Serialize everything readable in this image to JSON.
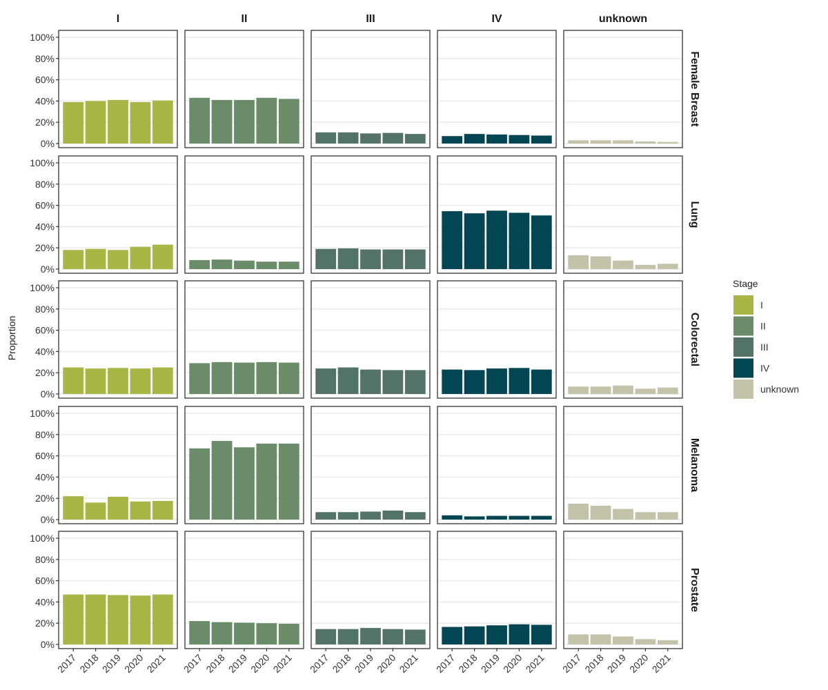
{
  "chart_data": {
    "type": "bar",
    "layout": "facet_grid",
    "title": "",
    "xlabel": "",
    "ylabel": "Proportion",
    "ylim": [
      0,
      1
    ],
    "y_ticks": [
      "0%",
      "20%",
      "40%",
      "60%",
      "80%",
      "100%"
    ],
    "y_tick_values": [
      0,
      0.2,
      0.4,
      0.6,
      0.8,
      1.0
    ],
    "categories": [
      "2017",
      "2018",
      "2019",
      "2020",
      "2021"
    ],
    "grid": true,
    "column_facets": [
      "I",
      "II",
      "III",
      "IV",
      "unknown"
    ],
    "row_facets": [
      "Female Breast",
      "Lung",
      "Colorectal",
      "Melanoma",
      "Prostate"
    ],
    "legend": {
      "title": "Stage",
      "position": "right",
      "entries": [
        {
          "label": "I",
          "color": "#A9B545"
        },
        {
          "label": "II",
          "color": "#6A8C69"
        },
        {
          "label": "III",
          "color": "#537367"
        },
        {
          "label": "IV",
          "color": "#034653"
        },
        {
          "label": "unknown",
          "color": "#C4C2A8"
        }
      ]
    },
    "panels": [
      {
        "row": "Female Breast",
        "series": [
          {
            "name": "I",
            "values": [
              0.39,
              0.4,
              0.41,
              0.39,
              0.405
            ]
          },
          {
            "name": "II",
            "values": [
              0.43,
              0.41,
              0.41,
              0.43,
              0.42
            ]
          },
          {
            "name": "III",
            "values": [
              0.105,
              0.105,
              0.095,
              0.1,
              0.09
            ]
          },
          {
            "name": "IV",
            "values": [
              0.07,
              0.09,
              0.085,
              0.08,
              0.075
            ]
          },
          {
            "name": "unknown",
            "values": [
              0.03,
              0.03,
              0.03,
              0.02,
              0.015
            ]
          }
        ]
      },
      {
        "row": "Lung",
        "series": [
          {
            "name": "I",
            "values": [
              0.18,
              0.19,
              0.18,
              0.21,
              0.23
            ]
          },
          {
            "name": "II",
            "values": [
              0.085,
              0.09,
              0.08,
              0.07,
              0.07
            ]
          },
          {
            "name": "III",
            "values": [
              0.19,
              0.195,
              0.185,
              0.185,
              0.185
            ]
          },
          {
            "name": "IV",
            "values": [
              0.545,
              0.525,
              0.55,
              0.53,
              0.505
            ]
          },
          {
            "name": "unknown",
            "values": [
              0.13,
              0.12,
              0.08,
              0.04,
              0.05
            ]
          }
        ]
      },
      {
        "row": "Colorectal",
        "series": [
          {
            "name": "I",
            "values": [
              0.25,
              0.24,
              0.245,
              0.24,
              0.25
            ]
          },
          {
            "name": "II",
            "values": [
              0.29,
              0.3,
              0.295,
              0.3,
              0.295
            ]
          },
          {
            "name": "III",
            "values": [
              0.24,
              0.25,
              0.23,
              0.225,
              0.225
            ]
          },
          {
            "name": "IV",
            "values": [
              0.23,
              0.225,
              0.24,
              0.245,
              0.23
            ]
          },
          {
            "name": "unknown",
            "values": [
              0.07,
              0.07,
              0.08,
              0.05,
              0.06
            ]
          }
        ]
      },
      {
        "row": "Melanoma",
        "series": [
          {
            "name": "I",
            "values": [
              0.22,
              0.16,
              0.215,
              0.17,
              0.175
            ]
          },
          {
            "name": "II",
            "values": [
              0.67,
              0.74,
              0.68,
              0.715,
              0.715
            ]
          },
          {
            "name": "III",
            "values": [
              0.07,
              0.07,
              0.075,
              0.085,
              0.07
            ]
          },
          {
            "name": "IV",
            "values": [
              0.04,
              0.03,
              0.035,
              0.035,
              0.035
            ]
          },
          {
            "name": "unknown",
            "values": [
              0.15,
              0.13,
              0.1,
              0.07,
              0.07
            ]
          }
        ]
      },
      {
        "row": "Prostate",
        "series": [
          {
            "name": "I",
            "values": [
              0.47,
              0.47,
              0.465,
              0.46,
              0.47
            ]
          },
          {
            "name": "II",
            "values": [
              0.22,
              0.21,
              0.205,
              0.2,
              0.195
            ]
          },
          {
            "name": "III",
            "values": [
              0.145,
              0.145,
              0.155,
              0.145,
              0.14
            ]
          },
          {
            "name": "IV",
            "values": [
              0.165,
              0.17,
              0.18,
              0.19,
              0.185
            ]
          },
          {
            "name": "unknown",
            "values": [
              0.095,
              0.095,
              0.075,
              0.05,
              0.04
            ]
          }
        ]
      }
    ]
  }
}
